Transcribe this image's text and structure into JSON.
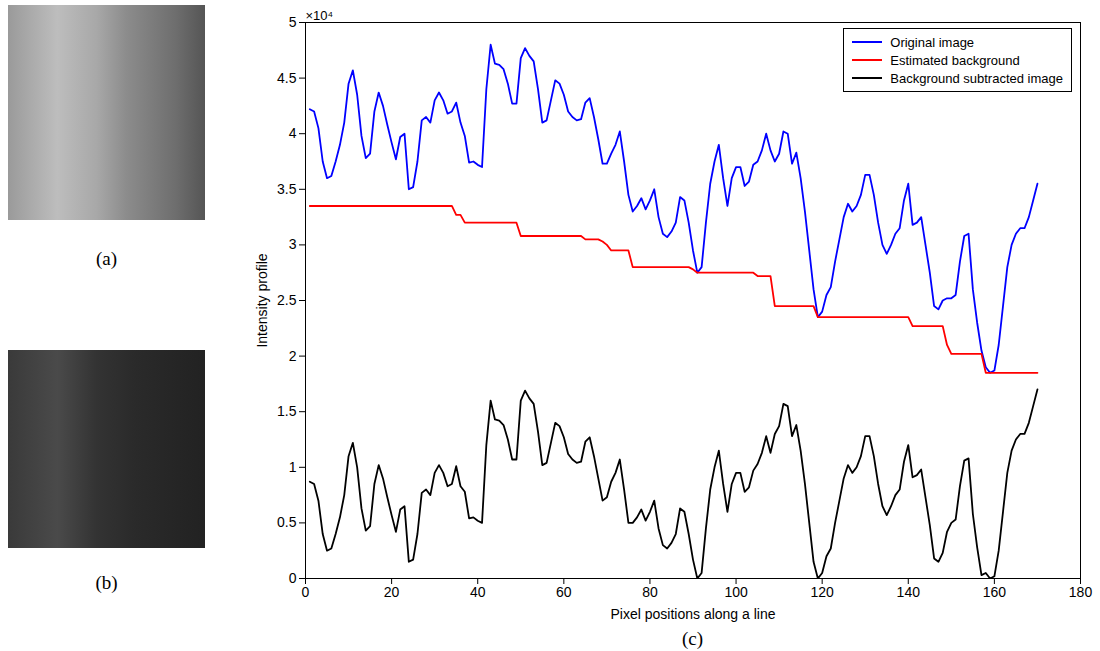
{
  "figure": {
    "panels": [
      {
        "label": "(a)"
      },
      {
        "label": "(b)"
      },
      {
        "label": "(c)"
      }
    ]
  },
  "chart_data": {
    "type": "line",
    "xlabel": "Pixel positions along a line",
    "ylabel": "Intensity profile",
    "annotations": [
      {
        "text": "×10⁴"
      }
    ],
    "xlim": [
      0,
      180
    ],
    "xticks": [
      0,
      20,
      40,
      60,
      80,
      100,
      120,
      140,
      160,
      180
    ],
    "ylim": [
      0,
      5
    ],
    "yticks": [
      0,
      0.5,
      1,
      1.5,
      2,
      2.5,
      3,
      3.5,
      4,
      4.5,
      5
    ],
    "legend": "upper right",
    "x": [
      1,
      2,
      3,
      4,
      5,
      6,
      7,
      8,
      9,
      10,
      11,
      12,
      13,
      14,
      15,
      16,
      17,
      18,
      19,
      20,
      21,
      22,
      23,
      24,
      25,
      26,
      27,
      28,
      29,
      30,
      31,
      32,
      33,
      34,
      35,
      36,
      37,
      38,
      39,
      40,
      41,
      42,
      43,
      44,
      45,
      46,
      47,
      48,
      49,
      50,
      51,
      52,
      53,
      54,
      55,
      56,
      57,
      58,
      59,
      60,
      61,
      62,
      63,
      64,
      65,
      66,
      67,
      68,
      69,
      70,
      71,
      72,
      73,
      74,
      75,
      76,
      77,
      78,
      79,
      80,
      81,
      82,
      83,
      84,
      85,
      86,
      87,
      88,
      89,
      90,
      91,
      92,
      93,
      94,
      95,
      96,
      97,
      98,
      99,
      100,
      101,
      102,
      103,
      104,
      105,
      106,
      107,
      108,
      109,
      110,
      111,
      112,
      113,
      114,
      115,
      116,
      117,
      118,
      119,
      120,
      121,
      122,
      123,
      124,
      125,
      126,
      127,
      128,
      129,
      130,
      131,
      132,
      133,
      134,
      135,
      136,
      137,
      138,
      139,
      140,
      141,
      142,
      143,
      144,
      145,
      146,
      147,
      148,
      149,
      150,
      151,
      152,
      153,
      154,
      155,
      156,
      157,
      158,
      159,
      160,
      161,
      162,
      163,
      164,
      165,
      166,
      167,
      168,
      169,
      170
    ],
    "series": [
      {
        "name": "Original image",
        "color": "#0000ff",
        "values": [
          4.22,
          4.2,
          4.05,
          3.75,
          3.6,
          3.62,
          3.75,
          3.9,
          4.1,
          4.45,
          4.57,
          4.35,
          3.98,
          3.78,
          3.82,
          4.2,
          4.37,
          4.25,
          4.08,
          3.92,
          3.77,
          3.97,
          4.0,
          3.5,
          3.52,
          3.75,
          4.12,
          4.15,
          4.1,
          4.3,
          4.37,
          4.3,
          4.18,
          4.2,
          4.28,
          4.1,
          3.98,
          3.74,
          3.75,
          3.72,
          3.7,
          4.4,
          4.8,
          4.63,
          4.62,
          4.58,
          4.45,
          4.27,
          4.27,
          4.68,
          4.77,
          4.7,
          4.65,
          4.4,
          4.1,
          4.12,
          4.3,
          4.48,
          4.45,
          4.35,
          4.2,
          4.15,
          4.12,
          4.13,
          4.28,
          4.32,
          4.15,
          3.95,
          3.73,
          3.73,
          3.82,
          3.9,
          4.02,
          3.75,
          3.45,
          3.3,
          3.35,
          3.42,
          3.32,
          3.4,
          3.5,
          3.25,
          3.1,
          3.07,
          3.12,
          3.2,
          3.43,
          3.4,
          3.2,
          2.95,
          2.75,
          2.8,
          3.2,
          3.55,
          3.75,
          3.9,
          3.6,
          3.35,
          3.6,
          3.7,
          3.7,
          3.53,
          3.57,
          3.72,
          3.75,
          3.85,
          4.0,
          3.85,
          3.75,
          3.82,
          4.02,
          4.0,
          3.73,
          3.83,
          3.6,
          3.3,
          2.95,
          2.6,
          2.35,
          2.4,
          2.55,
          2.62,
          2.85,
          3.05,
          3.25,
          3.37,
          3.3,
          3.35,
          3.45,
          3.63,
          3.63,
          3.45,
          3.2,
          3.0,
          2.92,
          3.0,
          3.1,
          3.15,
          3.4,
          3.55,
          3.18,
          3.2,
          3.25,
          3.0,
          2.75,
          2.45,
          2.42,
          2.5,
          2.52,
          2.52,
          2.55,
          2.85,
          3.08,
          3.1,
          2.6,
          2.3,
          2.05,
          1.9,
          1.85,
          1.87,
          2.1,
          2.45,
          2.8,
          3.0,
          3.1,
          3.15,
          3.15,
          3.25,
          3.4,
          3.55
        ]
      },
      {
        "name": "Estimated background",
        "color": "#ff0000",
        "values": [
          3.35,
          3.35,
          3.35,
          3.35,
          3.35,
          3.35,
          3.35,
          3.35,
          3.35,
          3.35,
          3.35,
          3.35,
          3.35,
          3.35,
          3.35,
          3.35,
          3.35,
          3.35,
          3.35,
          3.35,
          3.35,
          3.35,
          3.35,
          3.35,
          3.35,
          3.35,
          3.35,
          3.35,
          3.35,
          3.35,
          3.35,
          3.35,
          3.35,
          3.35,
          3.27,
          3.27,
          3.2,
          3.2,
          3.2,
          3.2,
          3.2,
          3.2,
          3.2,
          3.2,
          3.2,
          3.2,
          3.2,
          3.2,
          3.2,
          3.08,
          3.08,
          3.08,
          3.08,
          3.08,
          3.08,
          3.08,
          3.08,
          3.08,
          3.08,
          3.08,
          3.08,
          3.08,
          3.08,
          3.08,
          3.05,
          3.05,
          3.05,
          3.05,
          3.03,
          3.0,
          2.95,
          2.95,
          2.95,
          2.95,
          2.95,
          2.8,
          2.8,
          2.8,
          2.8,
          2.8,
          2.8,
          2.8,
          2.8,
          2.8,
          2.8,
          2.8,
          2.8,
          2.8,
          2.8,
          2.78,
          2.75,
          2.75,
          2.75,
          2.75,
          2.75,
          2.75,
          2.75,
          2.75,
          2.75,
          2.75,
          2.75,
          2.75,
          2.75,
          2.75,
          2.72,
          2.72,
          2.72,
          2.72,
          2.45,
          2.45,
          2.45,
          2.45,
          2.45,
          2.45,
          2.45,
          2.45,
          2.45,
          2.45,
          2.35,
          2.35,
          2.35,
          2.35,
          2.35,
          2.35,
          2.35,
          2.35,
          2.35,
          2.35,
          2.35,
          2.35,
          2.35,
          2.35,
          2.35,
          2.35,
          2.35,
          2.35,
          2.35,
          2.35,
          2.35,
          2.35,
          2.27,
          2.27,
          2.27,
          2.27,
          2.27,
          2.27,
          2.27,
          2.27,
          2.1,
          2.02,
          2.02,
          2.02,
          2.02,
          2.02,
          2.02,
          2.02,
          2.02,
          1.85,
          1.85,
          1.85,
          1.85,
          1.85,
          1.85,
          1.85,
          1.85,
          1.85,
          1.85,
          1.85,
          1.85,
          1.85
        ]
      },
      {
        "name": "Background subtracted image",
        "color": "#000000",
        "values": [
          0.87,
          0.85,
          0.7,
          0.4,
          0.25,
          0.27,
          0.4,
          0.55,
          0.75,
          1.1,
          1.22,
          1.0,
          0.63,
          0.43,
          0.47,
          0.85,
          1.02,
          0.9,
          0.73,
          0.57,
          0.42,
          0.62,
          0.65,
          0.15,
          0.17,
          0.4,
          0.77,
          0.8,
          0.75,
          0.95,
          1.02,
          0.95,
          0.83,
          0.85,
          1.01,
          0.83,
          0.78,
          0.54,
          0.55,
          0.52,
          0.5,
          1.2,
          1.6,
          1.43,
          1.42,
          1.38,
          1.25,
          1.07,
          1.07,
          1.6,
          1.69,
          1.62,
          1.57,
          1.32,
          1.02,
          1.04,
          1.22,
          1.4,
          1.37,
          1.27,
          1.12,
          1.07,
          1.04,
          1.05,
          1.23,
          1.27,
          1.1,
          0.9,
          0.7,
          0.73,
          0.87,
          0.95,
          1.07,
          0.8,
          0.5,
          0.5,
          0.55,
          0.62,
          0.52,
          0.6,
          0.7,
          0.45,
          0.3,
          0.27,
          0.32,
          0.4,
          0.63,
          0.6,
          0.4,
          0.17,
          0,
          0.05,
          0.45,
          0.8,
          1.0,
          1.15,
          0.85,
          0.6,
          0.85,
          0.95,
          0.95,
          0.78,
          0.82,
          0.97,
          1.03,
          1.13,
          1.28,
          1.13,
          1.3,
          1.37,
          1.57,
          1.55,
          1.28,
          1.38,
          1.15,
          0.85,
          0.5,
          0.15,
          0,
          0.05,
          0.2,
          0.27,
          0.5,
          0.7,
          0.9,
          1.02,
          0.95,
          1.0,
          1.1,
          1.28,
          1.28,
          1.1,
          0.85,
          0.65,
          0.57,
          0.65,
          0.75,
          0.8,
          1.05,
          1.2,
          0.91,
          0.93,
          0.98,
          0.73,
          0.48,
          0.18,
          0.15,
          0.23,
          0.42,
          0.5,
          0.53,
          0.83,
          1.06,
          1.08,
          0.58,
          0.28,
          0.03,
          0.05,
          0,
          0.02,
          0.25,
          0.6,
          0.95,
          1.15,
          1.25,
          1.3,
          1.3,
          1.4,
          1.55,
          1.7
        ]
      }
    ]
  }
}
